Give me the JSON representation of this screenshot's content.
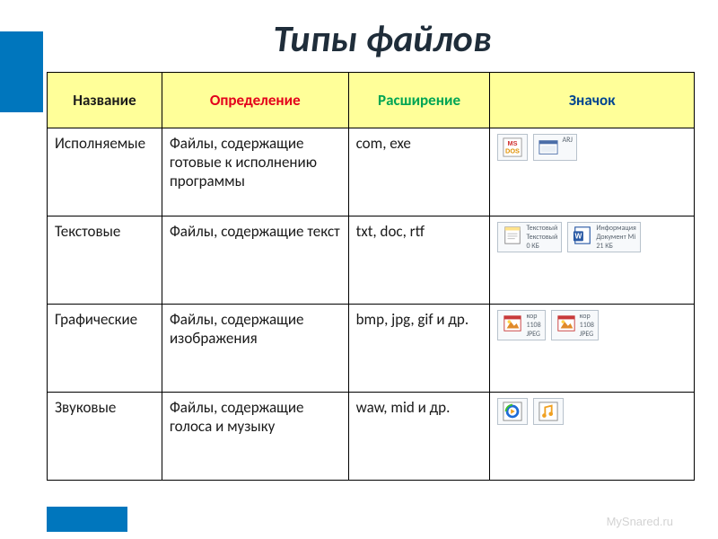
{
  "title": "Типы файлов",
  "columns": {
    "name": "Название",
    "def": "Определение",
    "ext": "Расширение",
    "icon": "Значок"
  },
  "rows": [
    {
      "name": "Исполняемые",
      "def": "Файлы, содержащие готовые к исполнению программы",
      "ext": "com, exe",
      "icons": [
        {
          "kind": "msdos",
          "label1": "",
          "label2": "",
          "label3": ""
        },
        {
          "kind": "window",
          "label1": "ARJ",
          "label2": "",
          "label3": ""
        }
      ]
    },
    {
      "name": "Текстовые",
      "def": "Файлы, содержащие текст",
      "ext": "txt, doc, rtf",
      "icons": [
        {
          "kind": "notepad",
          "label1": "Текстовый",
          "label2": "Текстовый",
          "label3": "0 КБ"
        },
        {
          "kind": "word",
          "label1": "Информация",
          "label2": "Документ Mi",
          "label3": "21 КБ"
        }
      ]
    },
    {
      "name": "Графические",
      "def": "Файлы, содержащие изображения",
      "ext": "bmp, jpg, gif и др.",
      "icons": [
        {
          "kind": "image",
          "label1": "кор",
          "label2": "1108",
          "label3": "JPEG"
        },
        {
          "kind": "image",
          "label1": "кор",
          "label2": "1108",
          "label3": "JPEG"
        }
      ]
    },
    {
      "name": "Звуковые",
      "def": "Файлы, содержащие голоса и музыку",
      "ext": "waw, mid и др.",
      "icons": [
        {
          "kind": "wmp",
          "label1": "",
          "label2": "",
          "label3": ""
        },
        {
          "kind": "midi",
          "label1": "",
          "label2": "",
          "label3": ""
        }
      ]
    }
  ],
  "watermark": "MySnared.ru",
  "colors": {
    "header_bg": "#ffff99",
    "def_color": "#e3001b",
    "ext_color": "#00a554",
    "icon_color": "#004590",
    "accent": "#0076bd"
  }
}
